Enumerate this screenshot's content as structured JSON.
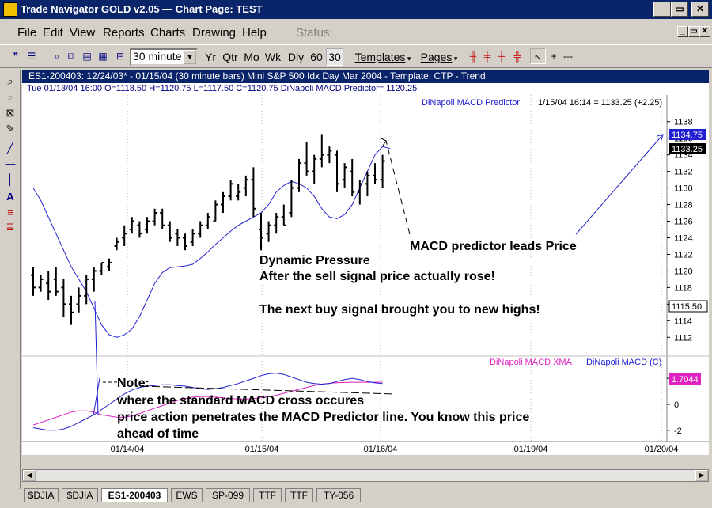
{
  "window": {
    "title": "Trade Navigator GOLD v2.05  —  Chart Page: TEST",
    "min_label": "_",
    "max_label": "▭",
    "close_label": "✕"
  },
  "menu": {
    "items": [
      "File",
      "Edit",
      "View",
      "Reports",
      "Charts",
      "Drawing",
      "Help"
    ],
    "status_label": "Status:"
  },
  "toolbar": {
    "interval": "30 minute",
    "periods": [
      "Yr",
      "Qtr",
      "Mo",
      "Wk",
      "Dly",
      "60",
      "30"
    ],
    "templates_label": "Templates",
    "pages_label": "Pages"
  },
  "chart": {
    "header": "ES1-200403:  12/24/03* - 01/15/04  (30 minute bars)   Mini S&P 500 Idx Day Mar 2004  - Template: CTP - Trend",
    "bar_info": "Tue   01/13/04 16:00   O=1118.50   H=1120.75   L=1117.50   C=1120.75   DiNapoli MACD Predictor= 1120.25",
    "predictor_legend": "DiNapoli MACD Predictor",
    "price_readout": "1/15/04 16:14 = 1133.25 (+2.25)",
    "predictor_value_box": "1134.75",
    "last_price_box": "1133.25",
    "cursor_price_box": "1115.50",
    "xma_legend": "DiNapoli MACD XMA",
    "macd_legend": "DiNapoli MACD (C)",
    "macd_value_box": "1.7044",
    "annotations": {
      "leads": "MACD predictor leads Price",
      "dynamic_1": "Dynamic Pressure",
      "dynamic_2": "After the sell signal price actually rose!",
      "dynamic_3": "The next buy signal brought you to new highs!",
      "note_title": "Note:",
      "note_1": "where the standard MACD cross occures",
      "note_2": "price action penetrates the MACD Predictor line. You know this price",
      "note_3": "ahead of time"
    },
    "colors": {
      "predictor": "#2020d0",
      "xma": "#e020c0",
      "macd": "#2020d0",
      "bars": "#000000"
    }
  },
  "tabs": [
    "$DJIA",
    "$DJIA",
    "ES1-200403",
    "EWS",
    "SP-099",
    "TTF",
    "TTF",
    "TY-056"
  ],
  "chart_data": {
    "type": "line",
    "price_axis": {
      "ticks": [
        1112,
        1114,
        1116,
        1118,
        1120,
        1122,
        1124,
        1126,
        1128,
        1130,
        1132,
        1134,
        1136,
        1138
      ],
      "ylim": [
        1110.5,
        1139.5
      ]
    },
    "macd_axis": {
      "ticks": [
        2,
        0,
        -2
      ]
    },
    "x_ticks": [
      "01/14/04",
      "01/15/04",
      "01/16/04",
      "01/19/04",
      "01/20/04"
    ],
    "price_bars": [
      {
        "o": 1119.5,
        "h": 1120.5,
        "l": 1117.0,
        "c": 1118.0
      },
      {
        "o": 1118.0,
        "h": 1119.5,
        "l": 1117.5,
        "c": 1119.0
      },
      {
        "o": 1118.5,
        "h": 1120.0,
        "l": 1116.5,
        "c": 1117.5
      },
      {
        "o": 1119.0,
        "h": 1120.5,
        "l": 1117.0,
        "c": 1117.5
      },
      {
        "o": 1118.0,
        "h": 1119.0,
        "l": 1114.5,
        "c": 1116.0
      },
      {
        "o": 1116.0,
        "h": 1117.0,
        "l": 1113.5,
        "c": 1115.0
      },
      {
        "o": 1116.0,
        "h": 1118.0,
        "l": 1115.0,
        "c": 1117.0
      },
      {
        "o": 1117.0,
        "h": 1119.5,
        "l": 1116.0,
        "c": 1119.0
      },
      {
        "o": 1119.0,
        "h": 1120.5,
        "l": 1117.5,
        "c": 1120.0
      },
      {
        "o": 1120.0,
        "h": 1121.0,
        "l": 1119.5,
        "c": 1121.0
      },
      {
        "o": 1120.5,
        "h": 1121.5,
        "l": 1120.0,
        "c": 1121.0
      },
      {
        "o": 1123.0,
        "h": 1124.0,
        "l": 1122.5,
        "c": 1123.5
      },
      {
        "o": 1124.0,
        "h": 1125.5,
        "l": 1123.0,
        "c": 1124.5
      },
      {
        "o": 1125.0,
        "h": 1126.5,
        "l": 1124.5,
        "c": 1126.0
      },
      {
        "o": 1125.5,
        "h": 1126.0,
        "l": 1124.0,
        "c": 1124.5
      },
      {
        "o": 1125.0,
        "h": 1126.5,
        "l": 1124.5,
        "c": 1126.0
      },
      {
        "o": 1126.0,
        "h": 1127.5,
        "l": 1125.5,
        "c": 1127.0
      },
      {
        "o": 1127.0,
        "h": 1127.5,
        "l": 1125.0,
        "c": 1125.5
      },
      {
        "o": 1125.5,
        "h": 1126.0,
        "l": 1123.5,
        "c": 1124.0
      },
      {
        "o": 1124.5,
        "h": 1125.0,
        "l": 1123.0,
        "c": 1124.0
      },
      {
        "o": 1124.0,
        "h": 1124.5,
        "l": 1122.5,
        "c": 1123.0
      },
      {
        "o": 1123.5,
        "h": 1125.0,
        "l": 1123.0,
        "c": 1124.5
      },
      {
        "o": 1124.5,
        "h": 1126.0,
        "l": 1124.0,
        "c": 1125.5
      },
      {
        "o": 1125.5,
        "h": 1127.0,
        "l": 1125.0,
        "c": 1126.5
      },
      {
        "o": 1126.0,
        "h": 1128.5,
        "l": 1126.0,
        "c": 1128.0
      },
      {
        "o": 1128.0,
        "h": 1129.5,
        "l": 1127.0,
        "c": 1129.0
      },
      {
        "o": 1129.0,
        "h": 1131.0,
        "l": 1128.5,
        "c": 1130.5
      },
      {
        "o": 1129.0,
        "h": 1130.5,
        "l": 1128.5,
        "c": 1129.5
      },
      {
        "o": 1130.0,
        "h": 1131.5,
        "l": 1129.0,
        "c": 1131.0
      },
      {
        "o": 1131.0,
        "h": 1132.5,
        "l": 1126.5,
        "c": 1127.5
      },
      {
        "o": 1125.0,
        "h": 1127.0,
        "l": 1122.5,
        "c": 1124.0
      },
      {
        "o": 1124.5,
        "h": 1126.0,
        "l": 1123.5,
        "c": 1125.5
      },
      {
        "o": 1125.5,
        "h": 1127.0,
        "l": 1124.5,
        "c": 1126.5
      },
      {
        "o": 1126.5,
        "h": 1128.0,
        "l": 1125.5,
        "c": 1125.5
      },
      {
        "o": 1127.0,
        "h": 1131.0,
        "l": 1126.5,
        "c": 1130.0
      },
      {
        "o": 1130.0,
        "h": 1133.5,
        "l": 1129.5,
        "c": 1133.0
      },
      {
        "o": 1133.0,
        "h": 1135.5,
        "l": 1131.5,
        "c": 1132.0
      },
      {
        "o": 1132.0,
        "h": 1134.0,
        "l": 1130.5,
        "c": 1133.5
      },
      {
        "o": 1133.5,
        "h": 1136.5,
        "l": 1132.5,
        "c": 1134.0
      },
      {
        "o": 1134.0,
        "h": 1135.0,
        "l": 1133.0,
        "c": 1134.5
      },
      {
        "o": 1134.0,
        "h": 1134.5,
        "l": 1129.5,
        "c": 1130.5
      },
      {
        "o": 1131.0,
        "h": 1133.0,
        "l": 1130.0,
        "c": 1132.5
      },
      {
        "o": 1132.0,
        "h": 1133.5,
        "l": 1129.0,
        "c": 1129.5
      },
      {
        "o": 1129.5,
        "h": 1131.0,
        "l": 1128.0,
        "c": 1130.5
      },
      {
        "o": 1130.5,
        "h": 1132.0,
        "l": 1129.0,
        "c": 1131.5
      },
      {
        "o": 1131.5,
        "h": 1133.0,
        "l": 1130.5,
        "c": 1131.0
      },
      {
        "o": 1131.0,
        "h": 1134.0,
        "l": 1130.0,
        "c": 1133.25
      }
    ],
    "predictor_line": [
      1130,
      1128.5,
      1126.5,
      1124.5,
      1122.5,
      1120.5,
      1119,
      1117.5,
      1115.5,
      1113.5,
      1112.3,
      1112,
      1112.3,
      1113,
      1114.5,
      1116.5,
      1118.5,
      1119.8,
      1120.4,
      1120.5,
      1120.6,
      1120.8,
      1121.5,
      1122.3,
      1123.2,
      1124,
      1124.8,
      1125.5,
      1126,
      1126.5,
      1127,
      1128,
      1129.5,
      1130.3,
      1130.8,
      1130.5,
      1130,
      1129,
      1127.5,
      1126.5,
      1126.3,
      1126.8,
      1128,
      1130,
      1132,
      1134,
      1135,
      1134.75
    ],
    "macd_xma": [
      -1.6,
      -1.4,
      -1.2,
      -1.0,
      -0.8,
      -0.6,
      -0.5,
      -0.5,
      -0.6,
      -0.8,
      -0.9,
      -1.0,
      -1.0,
      -0.9,
      -0.7,
      -0.5,
      -0.3,
      -0.1,
      0.1,
      0.3,
      0.45,
      0.55,
      0.6,
      0.6,
      0.55,
      0.5,
      0.45,
      0.4,
      0.4,
      0.45,
      0.5,
      0.6,
      0.7,
      0.85,
      1.0,
      1.15,
      1.3,
      1.45,
      1.55,
      1.62,
      1.66,
      1.68,
      1.7,
      1.7,
      1.7,
      1.7,
      1.7044
    ],
    "macd": [
      -1.8,
      -1.9,
      -2.0,
      -2.0,
      -1.9,
      -1.7,
      -1.4,
      -1.1,
      -0.8,
      -0.4,
      0.0,
      0.4,
      0.8,
      1.1,
      1.3,
      1.4,
      1.45,
      1.5,
      1.5,
      1.45,
      1.4,
      1.3,
      1.2,
      1.15,
      1.2,
      1.3,
      1.45,
      1.6,
      1.8,
      2.0,
      2.2,
      2.35,
      2.4,
      2.3,
      2.1,
      1.9,
      1.7,
      1.6,
      1.55,
      1.6,
      1.75,
      1.9,
      2.0,
      1.9,
      1.75,
      1.65,
      1.6
    ]
  }
}
